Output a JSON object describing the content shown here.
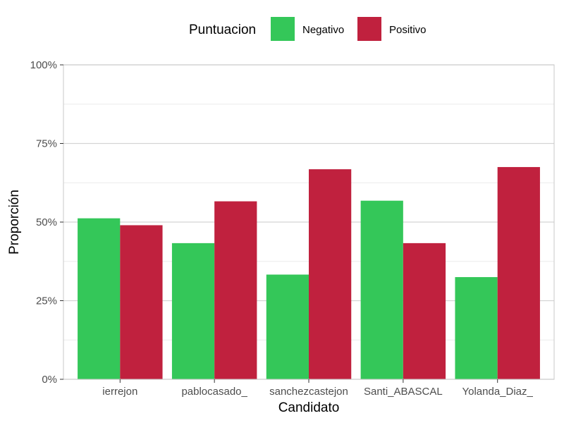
{
  "chart_data": {
    "type": "bar",
    "title": "",
    "xlabel": "Candidato",
    "ylabel": "Proporción",
    "ylim": [
      0,
      1
    ],
    "yticks": [
      {
        "value": 0,
        "label": "0%"
      },
      {
        "value": 0.25,
        "label": "25%"
      },
      {
        "value": 0.5,
        "label": "50%"
      },
      {
        "value": 0.75,
        "label": "75%"
      },
      {
        "value": 1,
        "label": "100%"
      }
    ],
    "categories": [
      "ierrejon",
      "pablocasado_",
      "sanchezcastejon",
      "Santi_ABASCAL",
      "Yolanda_Diaz_"
    ],
    "series": [
      {
        "name": "Negativo",
        "color": "#34c759",
        "values": [
          0.512,
          0.433,
          0.333,
          0.568,
          0.325
        ]
      },
      {
        "name": "Positivo",
        "color": "#c0213e",
        "values": [
          0.49,
          0.566,
          0.668,
          0.433,
          0.675
        ]
      }
    ],
    "legend": {
      "title": "Puntuacion",
      "position": "top"
    },
    "grid": true
  }
}
